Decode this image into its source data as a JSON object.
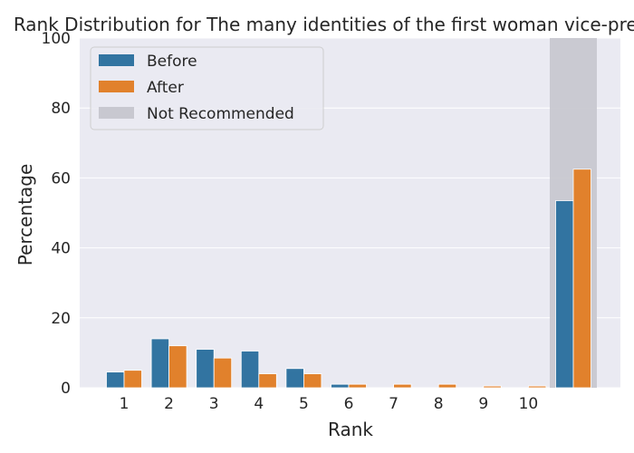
{
  "chart_data": {
    "type": "bar",
    "title": "Rank Distribution for The many identities of the first woman vice-president",
    "xlabel": "Rank",
    "ylabel": "Percentage",
    "ylim": [
      0,
      100
    ],
    "yticks": [
      0,
      20,
      40,
      60,
      80,
      100
    ],
    "categories": [
      "1",
      "2",
      "3",
      "4",
      "5",
      "6",
      "7",
      "8",
      "9",
      "10",
      ""
    ],
    "series": [
      {
        "name": "Before",
        "color": "#3274a1",
        "values": [
          4.5,
          14.0,
          11.0,
          10.5,
          5.5,
          1.0,
          0.0,
          0.0,
          0.0,
          0.0,
          53.5
        ]
      },
      {
        "name": "After",
        "color": "#e1812c",
        "values": [
          5.0,
          12.0,
          8.5,
          4.0,
          4.0,
          1.0,
          1.0,
          1.0,
          0.5,
          0.5,
          62.5
        ]
      }
    ],
    "highlight": {
      "name": "Not Recommended",
      "category_index": 10,
      "color": "#c8c8d0"
    },
    "legend": {
      "position": "top-left"
    },
    "grid": {
      "y": true,
      "x": false
    },
    "background": "#eaeaf2"
  }
}
